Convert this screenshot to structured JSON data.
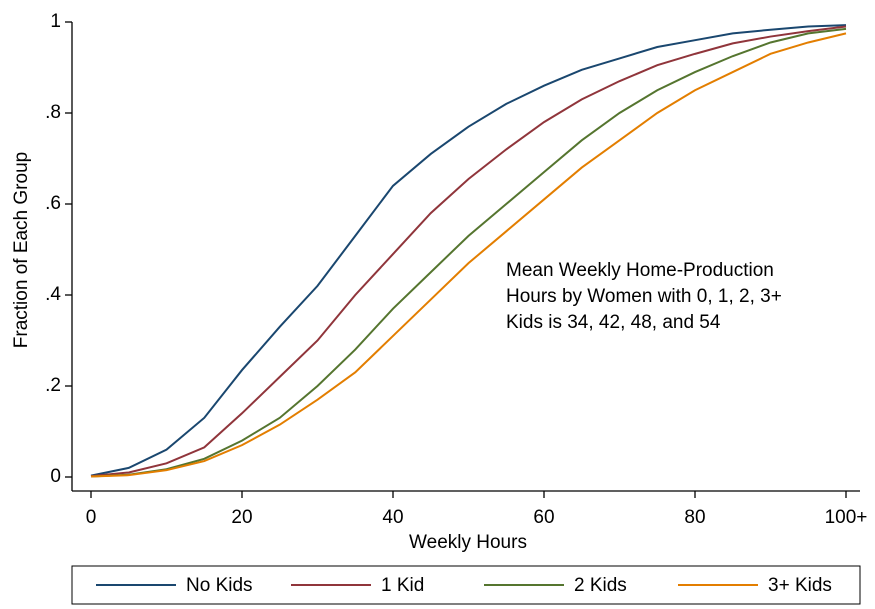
{
  "chart_data": {
    "type": "line",
    "x_label": "Weekly Hours",
    "y_label": "Fraction of Each Group",
    "annotation": [
      "Mean Weekly Home-Production",
      "Hours by Women with 0, 1, 2, 3+",
      "Kids is 34, 42, 48, and 54"
    ],
    "x": [
      0,
      5,
      10,
      15,
      20,
      25,
      30,
      35,
      40,
      45,
      50,
      55,
      60,
      65,
      70,
      75,
      80,
      85,
      90,
      95,
      100
    ],
    "series": [
      {
        "name": "No Kids",
        "color": "#1a476f",
        "values": [
          0.003,
          0.02,
          0.06,
          0.13,
          0.235,
          0.33,
          0.42,
          0.53,
          0.64,
          0.71,
          0.77,
          0.82,
          0.86,
          0.895,
          0.92,
          0.945,
          0.96,
          0.975,
          0.983,
          0.99,
          0.993
        ]
      },
      {
        "name": "1 Kid",
        "color": "#90353b",
        "values": [
          0.002,
          0.01,
          0.03,
          0.065,
          0.14,
          0.22,
          0.3,
          0.4,
          0.49,
          0.58,
          0.655,
          0.72,
          0.78,
          0.83,
          0.87,
          0.905,
          0.93,
          0.953,
          0.968,
          0.98,
          0.99
        ]
      },
      {
        "name": "2 Kids",
        "color": "#55752f",
        "values": [
          0.001,
          0.005,
          0.017,
          0.04,
          0.08,
          0.13,
          0.2,
          0.28,
          0.37,
          0.45,
          0.53,
          0.6,
          0.67,
          0.74,
          0.8,
          0.85,
          0.89,
          0.925,
          0.955,
          0.975,
          0.985
        ]
      },
      {
        "name": "3+ Kids",
        "color": "#e37e00",
        "values": [
          0.001,
          0.004,
          0.015,
          0.035,
          0.07,
          0.115,
          0.17,
          0.23,
          0.31,
          0.39,
          0.47,
          0.54,
          0.61,
          0.68,
          0.74,
          0.8,
          0.85,
          0.89,
          0.93,
          0.955,
          0.975
        ]
      }
    ],
    "xlim": [
      0,
      100
    ],
    "xticks": [
      0,
      20,
      40,
      60,
      80,
      {
        "value": 100,
        "label": "100+"
      }
    ],
    "ylim": [
      0,
      1
    ],
    "yticks": [
      0,
      {
        "value": 0.2,
        "label": ".2"
      },
      {
        "value": 0.4,
        "label": ".4"
      },
      {
        "value": 0.6,
        "label": ".6"
      },
      {
        "value": 0.8,
        "label": ".8"
      },
      1
    ],
    "legend": "bottom"
  }
}
